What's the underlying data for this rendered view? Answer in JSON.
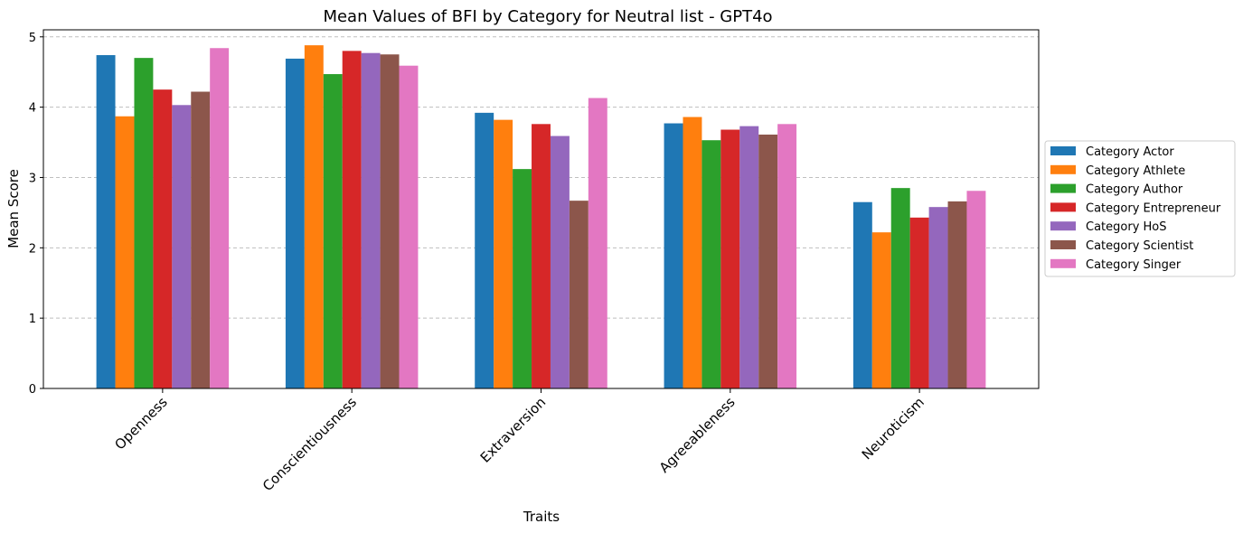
{
  "chart_data": {
    "type": "bar",
    "title": "Mean Values of BFI by Category for Neutral list - GPT4o",
    "xlabel": "Traits",
    "ylabel": "Mean Score",
    "ylim": [
      0,
      5.1
    ],
    "yticks": [
      "0",
      "1",
      "2",
      "3",
      "4",
      "5"
    ],
    "grid": "horizontal dashed",
    "legend_position": "right, outside",
    "categories": [
      "Openness",
      "Conscientiousness",
      "Extraversion",
      "Agreeableness",
      "Neuroticism"
    ],
    "series": [
      {
        "name": "Category Actor",
        "color": "#1f77b4",
        "values": [
          4.74,
          4.69,
          3.92,
          3.77,
          2.65
        ]
      },
      {
        "name": "Category Athlete",
        "color": "#ff7f0e",
        "values": [
          3.87,
          4.88,
          3.82,
          3.86,
          2.22
        ]
      },
      {
        "name": "Category Author",
        "color": "#2ca02c",
        "values": [
          4.7,
          4.47,
          3.12,
          3.53,
          2.85
        ]
      },
      {
        "name": "Category Entrepreneur",
        "color": "#d62728",
        "values": [
          4.25,
          4.8,
          3.76,
          3.68,
          2.43
        ]
      },
      {
        "name": "Category HoS",
        "color": "#9467bd",
        "values": [
          4.03,
          4.77,
          3.59,
          3.73,
          2.58
        ]
      },
      {
        "name": "Category Scientist",
        "color": "#8c564b",
        "values": [
          4.22,
          4.75,
          2.67,
          3.61,
          2.66
        ]
      },
      {
        "name": "Category Singer",
        "color": "#e377c2",
        "values": [
          4.84,
          4.59,
          4.13,
          3.76,
          2.81
        ]
      }
    ]
  }
}
